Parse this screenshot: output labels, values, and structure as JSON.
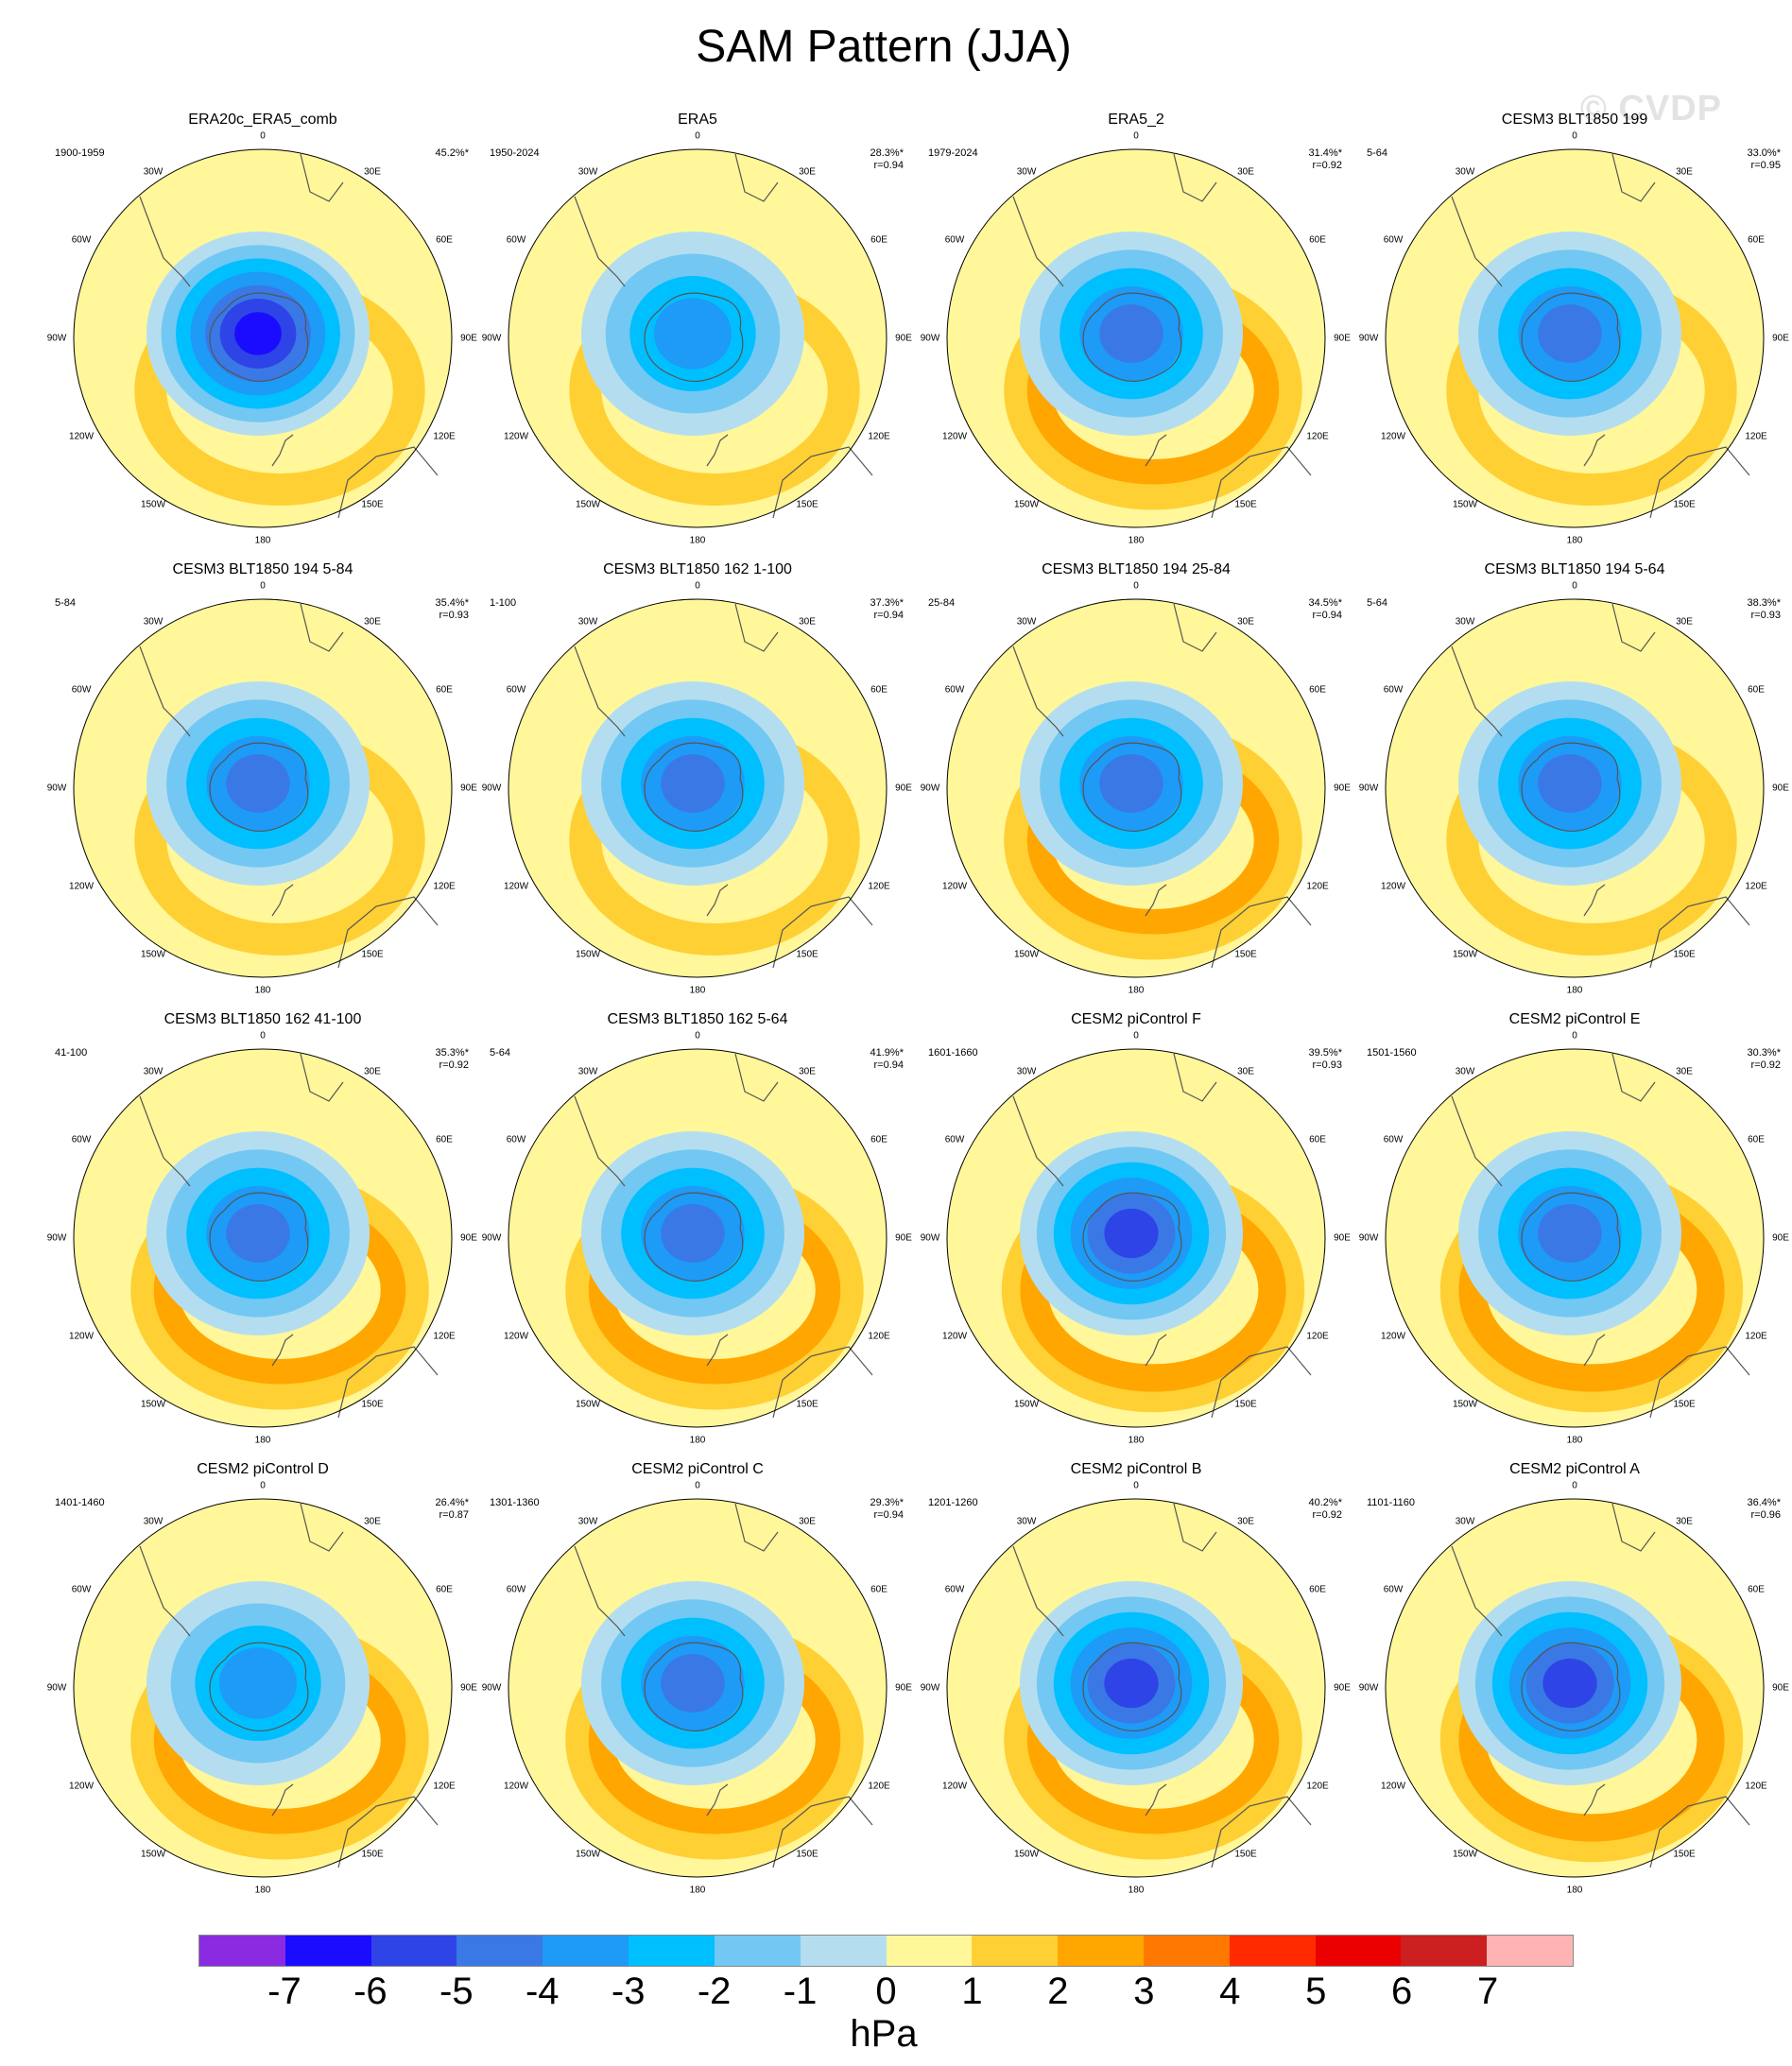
{
  "title": "SAM Pattern (JJA)",
  "watermark": "© CVDP",
  "map_labels": {
    "top": "0",
    "bottom": "180",
    "left": "90W",
    "right": "90E",
    "upper_left_outer": "60W",
    "upper_left_inner": "30W",
    "upper_right_inner": "30E",
    "upper_right_outer": "60E",
    "lower_left_outer": "120W",
    "lower_left_inner": "150W",
    "lower_right_outer": "120E",
    "lower_right_inner": "150E"
  },
  "panels": [
    {
      "title": "ERA20c_ERA5_comb",
      "period": "1900-1959",
      "pct": "45.2%*",
      "r": "",
      "low": -6,
      "high": 1.5
    },
    {
      "title": "ERA5",
      "period": "1950-2024",
      "pct": "28.3%*",
      "r": "r=0.94",
      "low": -3,
      "high": 1.5
    },
    {
      "title": "ERA5_2",
      "period": "1979-2024",
      "pct": "31.4%*",
      "r": "r=0.92",
      "low": -4,
      "high": 2
    },
    {
      "title": "CESM3 BLT1850 199",
      "period": "5-64",
      "pct": "33.0%*",
      "r": "r=0.95",
      "low": -4,
      "high": 1.5
    },
    {
      "title": "CESM3 BLT1850 194 5-84",
      "period": "5-84",
      "pct": "35.4%*",
      "r": "r=0.93",
      "low": -4,
      "high": 1.5
    },
    {
      "title": "CESM3 BLT1850 162 1-100",
      "period": "1-100",
      "pct": "37.3%*",
      "r": "r=0.94",
      "low": -4,
      "high": 1.5
    },
    {
      "title": "CESM3 BLT1850 194 25-84",
      "period": "25-84",
      "pct": "34.5%*",
      "r": "r=0.94",
      "low": -4,
      "high": 2
    },
    {
      "title": "CESM3 BLT1850 194 5-64",
      "period": "5-64",
      "pct": "38.3%*",
      "r": "r=0.93",
      "low": -4,
      "high": 1.5
    },
    {
      "title": "CESM3 BLT1850 162 41-100",
      "period": "41-100",
      "pct": "35.3%*",
      "r": "r=0.92",
      "low": -4,
      "high": 2
    },
    {
      "title": "CESM3 BLT1850 162 5-64",
      "period": "5-64",
      "pct": "41.9%*",
      "r": "r=0.94",
      "low": -4,
      "high": 2
    },
    {
      "title": "CESM2 piControl F",
      "period": "1601-1660",
      "pct": "39.5%*",
      "r": "r=0.93",
      "low": -5,
      "high": 2.5
    },
    {
      "title": "CESM2 piControl E",
      "period": "1501-1560",
      "pct": "30.3%*",
      "r": "r=0.92",
      "low": -4,
      "high": 2.5
    },
    {
      "title": "CESM2 piControl D",
      "period": "1401-1460",
      "pct": "26.4%*",
      "r": "r=0.87",
      "low": -3,
      "high": 2
    },
    {
      "title": "CESM2 piControl C",
      "period": "1301-1360",
      "pct": "29.3%*",
      "r": "r=0.94",
      "low": -4,
      "high": 2
    },
    {
      "title": "CESM2 piControl B",
      "period": "1201-1260",
      "pct": "40.2%*",
      "r": "r=0.92",
      "low": -5,
      "high": 2
    },
    {
      "title": "CESM2 piControl A",
      "period": "1101-1160",
      "pct": "36.4%*",
      "r": "r=0.96",
      "low": -5,
      "high": 2.5
    }
  ],
  "colorbar": {
    "colors": [
      "#8a2be2",
      "#1a0dff",
      "#2e44e6",
      "#3a78e6",
      "#1e9af7",
      "#00bfff",
      "#72c8f2",
      "#b4def0",
      "#fff79a",
      "#ffd034",
      "#ffa600",
      "#ff7800",
      "#ff2a00",
      "#ea0000",
      "#cc1f1f",
      "#ffb4b4"
    ],
    "ticks": [
      "-7",
      "-6",
      "-5",
      "-4",
      "-3",
      "-2",
      "-1",
      "0",
      "1",
      "2",
      "3",
      "4",
      "5",
      "6",
      "7"
    ],
    "unit": "hPa"
  }
}
